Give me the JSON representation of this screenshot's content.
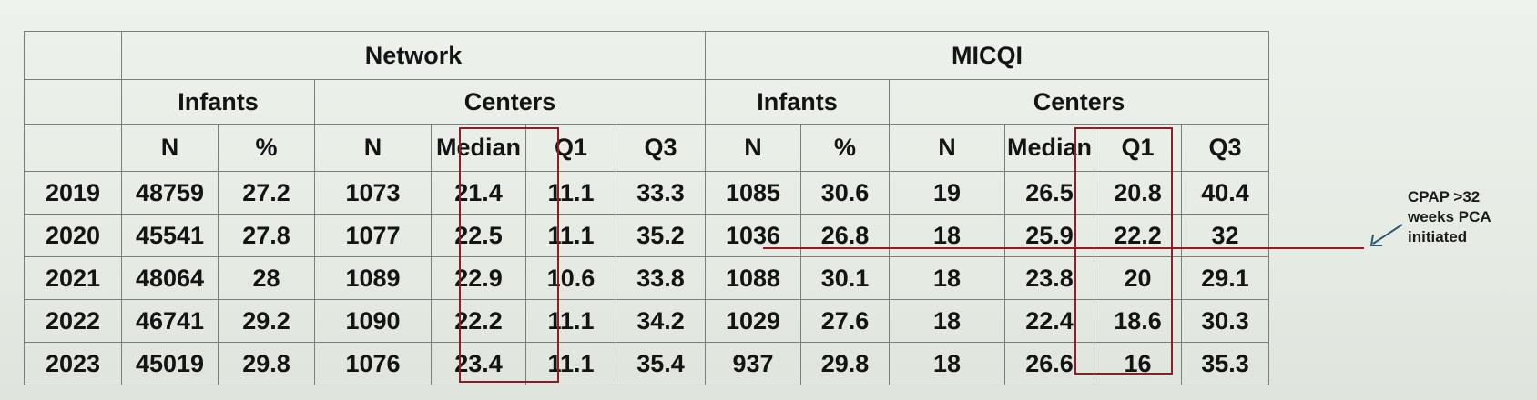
{
  "table": {
    "group_headers": [
      "Network",
      "MICQI"
    ],
    "sub_headers": [
      "Infants",
      "Centers",
      "Infants",
      "Centers"
    ],
    "columns": [
      "N",
      "%",
      "N",
      "Median",
      "Q1",
      "Q3",
      "N",
      "%",
      "N",
      "Median",
      "Q1",
      "Q3"
    ],
    "rows": [
      {
        "year": "2019",
        "cells": [
          "48759",
          "27.2",
          "1073",
          "21.4",
          "11.1",
          "33.3",
          "1085",
          "30.6",
          "19",
          "26.5",
          "20.8",
          "40.4"
        ]
      },
      {
        "year": "2020",
        "cells": [
          "45541",
          "27.8",
          "1077",
          "22.5",
          "11.1",
          "35.2",
          "1036",
          "26.8",
          "18",
          "25.9",
          "22.2",
          "32"
        ]
      },
      {
        "year": "2021",
        "cells": [
          "48064",
          "28",
          "1089",
          "22.9",
          "10.6",
          "33.8",
          "1088",
          "30.1",
          "18",
          "23.8",
          "20",
          "29.1"
        ]
      },
      {
        "year": "2022",
        "cells": [
          "46741",
          "29.2",
          "1090",
          "22.2",
          "11.1",
          "34.2",
          "1029",
          "27.6",
          "18",
          "22.4",
          "18.6",
          "30.3"
        ]
      },
      {
        "year": "2023",
        "cells": [
          "45019",
          "29.8",
          "1076",
          "23.4",
          "11.1",
          "35.4",
          "937",
          "29.8",
          "18",
          "26.6",
          "16",
          "35.3"
        ]
      }
    ]
  },
  "annotation": {
    "lines": [
      "CPAP >32",
      "weeks PCA",
      "initiated"
    ]
  },
  "colors": {
    "highlight": "#8b1f24",
    "grid": "#7d7d7d"
  }
}
